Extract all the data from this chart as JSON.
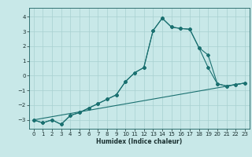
{
  "title": "",
  "xlabel": "Humidex (Indice chaleur)",
  "background_color": "#c8e8e8",
  "grid_color": "#a8d0d0",
  "line_color": "#1a7070",
  "xlim": [
    -0.5,
    23.5
  ],
  "ylim": [
    -3.6,
    4.6
  ],
  "yticks": [
    -3,
    -2,
    -1,
    0,
    1,
    2,
    3,
    4
  ],
  "xticks": [
    0,
    1,
    2,
    3,
    4,
    5,
    6,
    7,
    8,
    9,
    10,
    11,
    12,
    13,
    14,
    15,
    16,
    17,
    18,
    19,
    20,
    21,
    22,
    23
  ],
  "line1_x": [
    0,
    1,
    2,
    3,
    4,
    5,
    6,
    7,
    8,
    9,
    10,
    11,
    12,
    13,
    14,
    15,
    16,
    17,
    18,
    19,
    20,
    21,
    22,
    23
  ],
  "line1_y": [
    -3.0,
    -3.2,
    -3.0,
    -3.3,
    -2.7,
    -2.5,
    -2.2,
    -1.9,
    -1.6,
    -1.3,
    -0.4,
    0.2,
    0.55,
    3.05,
    3.9,
    3.3,
    3.2,
    3.15,
    1.9,
    1.4,
    -0.55,
    -0.7,
    -0.6,
    -0.5
  ],
  "line2_x": [
    0,
    1,
    2,
    3,
    4,
    5,
    6,
    7,
    8,
    9,
    10,
    11,
    12,
    13,
    14,
    15,
    16,
    17,
    18,
    19,
    20,
    21,
    22,
    23
  ],
  "line2_y": [
    -3.0,
    -3.2,
    -3.0,
    -3.3,
    -2.7,
    -2.5,
    -2.2,
    -1.9,
    -1.6,
    -1.3,
    -0.4,
    0.2,
    0.55,
    3.05,
    3.9,
    3.3,
    3.2,
    3.15,
    1.9,
    0.55,
    -0.55,
    -0.7,
    -0.6,
    -0.5
  ],
  "line3_x": [
    0,
    23
  ],
  "line3_y": [
    -3.0,
    -0.5
  ],
  "marker_style": "D",
  "marker_size": 2.0,
  "line_width": 0.8,
  "tick_fontsize": 5.0,
  "xlabel_fontsize": 5.5
}
